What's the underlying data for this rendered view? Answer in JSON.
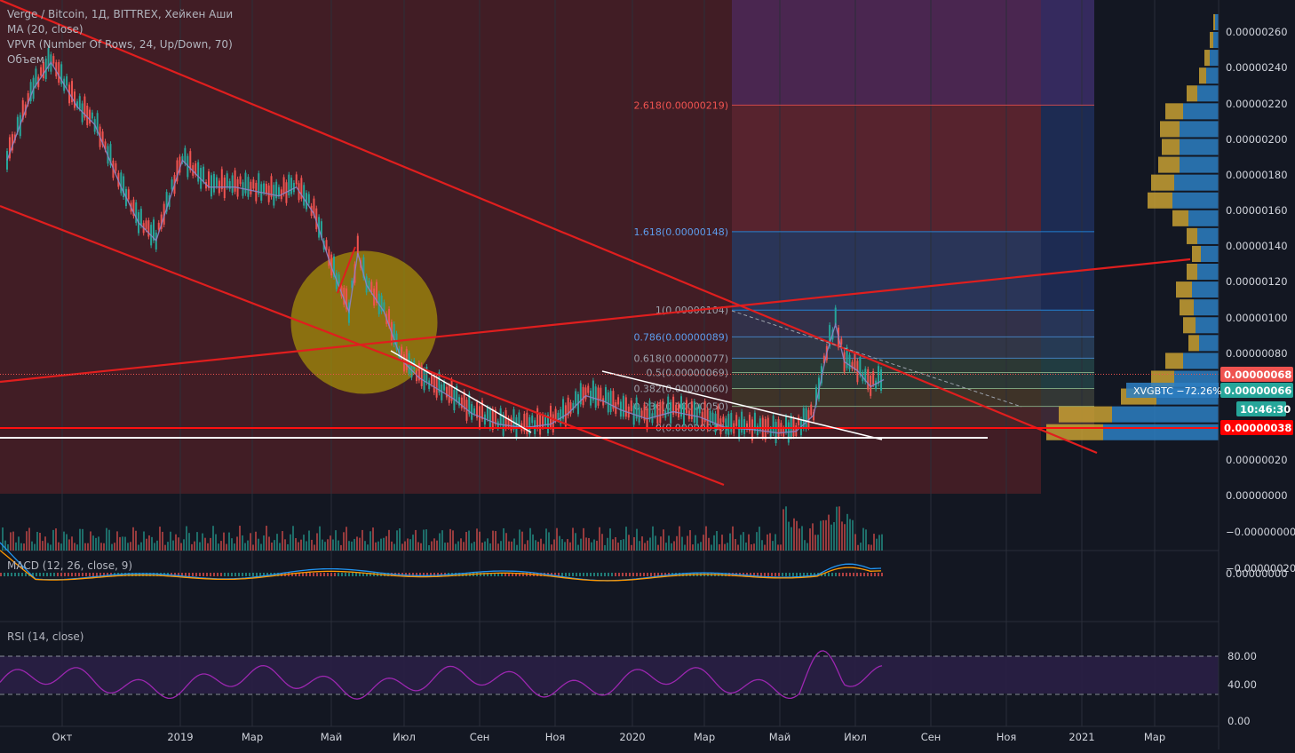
{
  "legend": {
    "symbol_line": "Verge / Bitcoin, 1Д, BITTREX, Хейкен Аши",
    "ma_line": "MA (20, close)",
    "vpvr_line": "VPVR (Number Of Rows, 24, Up/Down, 70)",
    "volume_line": "Объем"
  },
  "panes": {
    "macd_label": "MACD (12, 26, close, 9)",
    "rsi_label": "RSI (14, close)"
  },
  "colors": {
    "background": "#131722",
    "price_scale_bg": "#131722",
    "bull": "#26a69a",
    "bear": "#ef5350",
    "trendline_red": "#e01e1e",
    "trendline_white": "#ffffff",
    "ellipse_fill": "#c8b400",
    "fib_red_zone": "#4a1e26",
    "fib_blue_zone": "#2a3558",
    "fib_purple_zone": "#4a2650",
    "vpvr_blue": "#2d7fc2",
    "vpvr_gold": "#c8a032",
    "ma_line": "#8a84c8",
    "rsi_line": "#9c27b0",
    "rsi_band": "#2a1f45",
    "macd_line": "#2196f3",
    "signal_line": "#ff9800"
  },
  "chart_data": {
    "type": "line",
    "x_tick_labels": [
      "Окт",
      "2019",
      "Мар",
      "Май",
      "Июл",
      "Сен",
      "Ноя",
      "2020",
      "Мар",
      "Май",
      "Июл",
      "Сен",
      "Ноя",
      "2021",
      "Мар"
    ],
    "y_axis_labels": [
      "0.00000260",
      "0.00000240",
      "0.00000220",
      "0.00000200",
      "0.00000180",
      "0.00000160",
      "0.00000140",
      "0.00000120",
      "0.00000100",
      "0.00000080",
      "0.00000060",
      "0.00000040",
      "0.00000020",
      "0.00000000",
      "−0.00000000",
      "−0.00000020"
    ],
    "ylim": [
      -2e-07,
      2.7e-06
    ],
    "series": [
      {
        "values": [
          [
            0,
            1.9e-06
          ],
          [
            0.03,
            2.3e-06
          ],
          [
            0.05,
            2.45e-06
          ],
          [
            0.08,
            2.2e-06
          ],
          [
            0.1,
            2.1e-06
          ],
          [
            0.13,
            1.75e-06
          ],
          [
            0.15,
            1.55e-06
          ],
          [
            0.17,
            1.45e-06
          ],
          [
            0.2,
            1.9e-06
          ],
          [
            0.23,
            1.75e-06
          ],
          [
            0.26,
            1.75e-06
          ],
          [
            0.29,
            1.72e-06
          ],
          [
            0.31,
            1.7e-06
          ],
          [
            0.33,
            1.75e-06
          ],
          [
            0.35,
            1.6e-06
          ],
          [
            0.37,
            1.3e-06
          ],
          [
            0.39,
            1.05e-06
          ],
          [
            0.4,
            1.38e-06
          ],
          [
            0.41,
            1.2e-06
          ],
          [
            0.43,
            1.05e-06
          ],
          [
            0.45,
            7.8e-07
          ],
          [
            0.47,
            6.8e-07
          ],
          [
            0.49,
            6.2e-07
          ],
          [
            0.51,
            5.6e-07
          ],
          [
            0.53,
            4.8e-07
          ],
          [
            0.56,
            4.2e-07
          ],
          [
            0.59,
            4e-07
          ],
          [
            0.62,
            4.2e-07
          ],
          [
            0.64,
            4.8e-07
          ],
          [
            0.66,
            5.8e-07
          ],
          [
            0.68,
            5.5e-07
          ],
          [
            0.7,
            5e-07
          ],
          [
            0.73,
            4.5e-07
          ],
          [
            0.76,
            4.9e-07
          ],
          [
            0.79,
            4.6e-07
          ],
          [
            0.82,
            4e-07
          ],
          [
            0.85,
            3.9e-07
          ],
          [
            0.88,
            3.7e-07
          ],
          [
            0.9,
            3.8e-07
          ],
          [
            0.92,
            4.7e-07
          ],
          [
            0.935,
            8.2e-07
          ],
          [
            0.945,
            9.8e-07
          ],
          [
            0.955,
            7.7e-07
          ],
          [
            0.97,
            7.2e-07
          ],
          [
            0.985,
            6.3e-07
          ],
          [
            1.0,
            6.7e-07
          ]
        ]
      }
    ],
    "fib_levels": [
      {
        "label": "2.618(0.00000219)",
        "value": 2.19e-06
      },
      {
        "label": "1.618(0.00000148)",
        "value": 1.48e-06
      },
      {
        "label": "1(0.00000104)",
        "value": 1.04e-06
      },
      {
        "label": "0.786(0.00000089)",
        "value": 8.9e-07
      },
      {
        "label": "0.618(0.00000077)",
        "value": 7.7e-07
      },
      {
        "label": "0.5(0.00000069)",
        "value": 6.9e-07
      },
      {
        "label": "0.382(0.00000060)",
        "value": 6e-07
      },
      {
        "label": "0.236(0.00000050)",
        "value": 5e-07
      },
      {
        "label": "0(0.00000038)",
        "value": 3.8e-07
      }
    ],
    "price_badges": [
      {
        "text": "0.00000068",
        "value": 6.8e-07,
        "color": "#ef5350"
      },
      {
        "text": "0.00000066",
        "value": 6.6e-07,
        "color": "#26a69a"
      },
      {
        "text": "10:46:30",
        "value": 5.8e-07,
        "color": "#26a69a"
      },
      {
        "text": "0.00000038",
        "value": 3.8e-07,
        "color": "#ff0000"
      }
    ],
    "symbol_tag": "XVGBTC −72.26%",
    "vpvr_rows": [
      {
        "value": 2.7e-06,
        "up": 0.02,
        "down": 0.01
      },
      {
        "value": 2.6e-06,
        "up": 0.03,
        "down": 0.02
      },
      {
        "value": 2.5e-06,
        "up": 0.05,
        "down": 0.03
      },
      {
        "value": 2.4e-06,
        "up": 0.07,
        "down": 0.04
      },
      {
        "value": 2.3e-06,
        "up": 0.12,
        "down": 0.06
      },
      {
        "value": 2.2e-06,
        "up": 0.2,
        "down": 0.1
      },
      {
        "value": 2.1e-06,
        "up": 0.22,
        "down": 0.11
      },
      {
        "value": 2e-06,
        "up": 0.22,
        "down": 0.1
      },
      {
        "value": 1.9e-06,
        "up": 0.22,
        "down": 0.12
      },
      {
        "value": 1.8e-06,
        "up": 0.25,
        "down": 0.13
      },
      {
        "value": 1.7e-06,
        "up": 0.26,
        "down": 0.14
      },
      {
        "value": 1.6e-06,
        "up": 0.17,
        "down": 0.09
      },
      {
        "value": 1.5e-06,
        "up": 0.12,
        "down": 0.06
      },
      {
        "value": 1.4e-06,
        "up": 0.1,
        "down": 0.05
      },
      {
        "value": 1.3e-06,
        "up": 0.12,
        "down": 0.06
      },
      {
        "value": 1.2e-06,
        "up": 0.15,
        "down": 0.09
      },
      {
        "value": 1.1e-06,
        "up": 0.14,
        "down": 0.08
      },
      {
        "value": 1e-06,
        "up": 0.13,
        "down": 0.07
      },
      {
        "value": 9e-07,
        "up": 0.11,
        "down": 0.06
      },
      {
        "value": 8e-07,
        "up": 0.2,
        "down": 0.1
      },
      {
        "value": 7e-07,
        "up": 0.25,
        "down": 0.13
      },
      {
        "value": 6e-07,
        "up": 0.35,
        "down": 0.2
      },
      {
        "value": 5e-07,
        "up": 0.6,
        "down": 0.3
      },
      {
        "value": 4e-07,
        "up": 0.65,
        "down": 0.32
      }
    ],
    "rsi_levels": [
      80,
      40,
      0
    ],
    "rsi_level_labels": [
      "80.00",
      "40.00",
      "0.00"
    ],
    "macd_label_value": "0.00000000",
    "legend_position": "top-left",
    "grid": true
  }
}
